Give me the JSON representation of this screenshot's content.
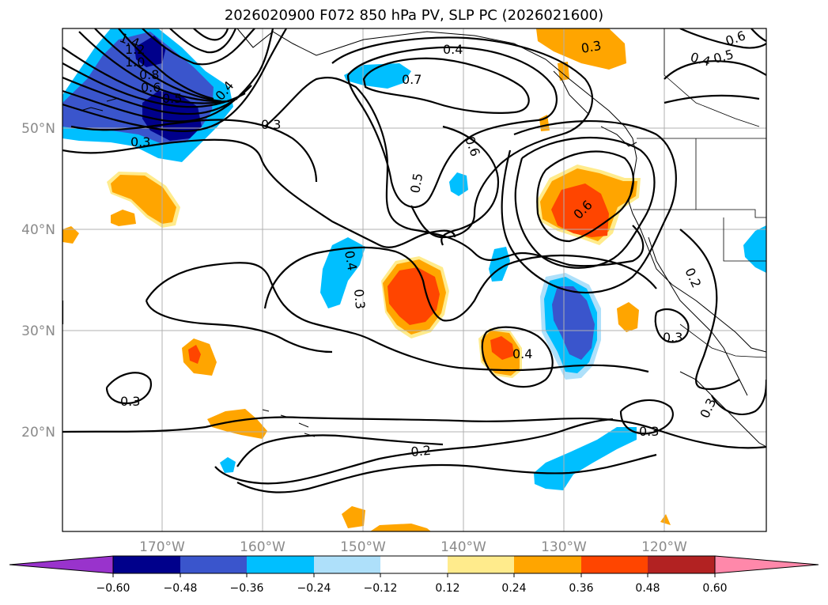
{
  "title": "2026020900 F072 850 hPa PV, SLP PC (2026021600)",
  "map": {
    "lat_labels": [
      "50°N",
      "40°N",
      "30°N",
      "20°N"
    ],
    "lon_labels": [
      "170°W",
      "160°W",
      "150°W",
      "140°W",
      "130°W",
      "120°W"
    ],
    "contour_labels": [
      "1.4",
      "1.2",
      "1.0",
      "0.8",
      "0.6",
      "0.5",
      "0.4",
      "0.3",
      "0.3",
      "0.4",
      "0.7",
      "0.3",
      "0.6",
      "0.4",
      "0.5",
      "0.5",
      "0.6",
      "0.6",
      "0.4",
      "0.3",
      "0.2",
      "0.4",
      "0.3",
      "0.3",
      "0.2",
      "0.3",
      "0.3"
    ],
    "colors": {
      "purple": "#9933cc",
      "navy": "#00008b",
      "royal": "#3a55cc",
      "sky": "#00bfff",
      "pale_blue": "#aee0fa",
      "white": "#ffffff",
      "pale_yellow": "#ffeb8c",
      "orange": "#ffa500",
      "red_orange": "#ff4500",
      "firebrick": "#b22222",
      "pink": "#ff88aa"
    }
  },
  "colorbar": {
    "ticks": [
      "−0.60",
      "−0.48",
      "−0.36",
      "−0.24",
      "−0.12",
      "0.12",
      "0.24",
      "0.36",
      "0.48",
      "0.60"
    ]
  }
}
